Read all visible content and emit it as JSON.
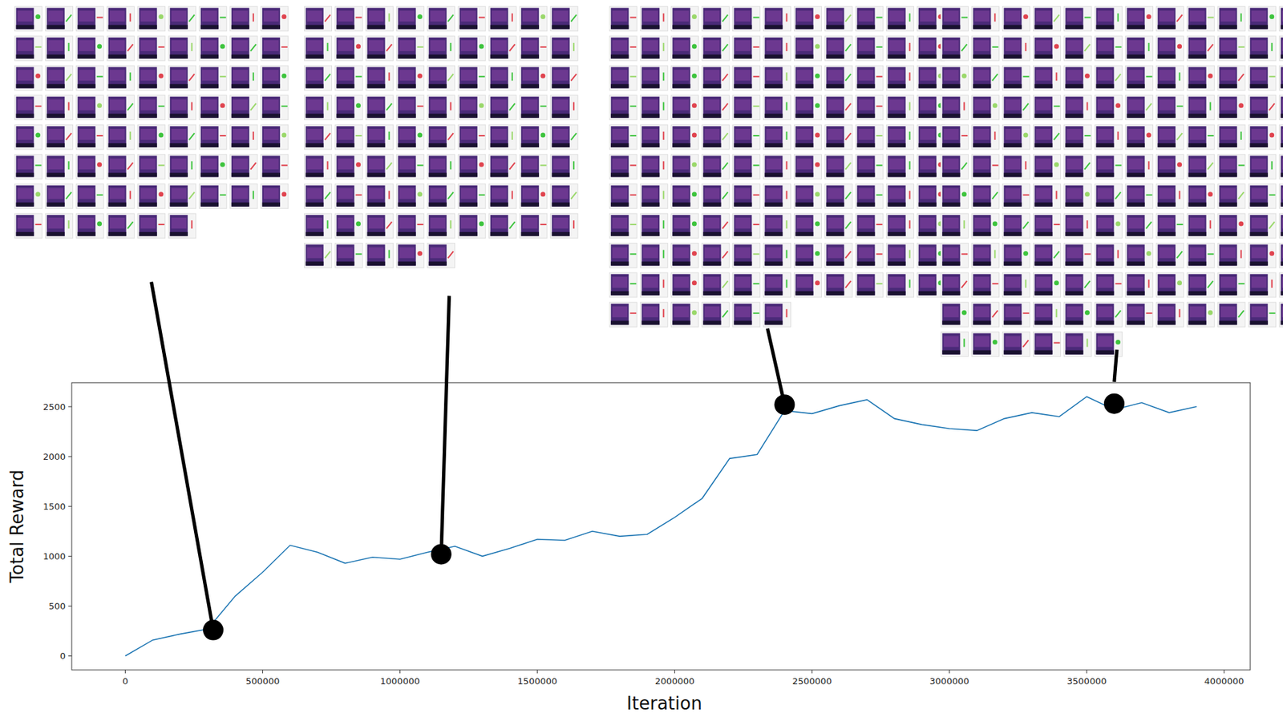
{
  "chart_data": {
    "type": "line",
    "x_label": "Iteration",
    "y_label": "Total Reward",
    "x": [
      0,
      100000,
      200000,
      300000,
      400000,
      500000,
      600000,
      700000,
      800000,
      900000,
      1000000,
      1100000,
      1200000,
      1300000,
      1400000,
      1500000,
      1600000,
      1700000,
      1800000,
      1900000,
      2000000,
      2100000,
      2200000,
      2300000,
      2400000,
      2500000,
      2600000,
      2700000,
      2800000,
      2900000,
      3000000,
      3100000,
      3200000,
      3300000,
      3400000,
      3500000,
      3600000,
      3700000,
      3800000,
      3900000
    ],
    "values": [
      0,
      160,
      220,
      270,
      600,
      840,
      1110,
      1040,
      930,
      990,
      970,
      1040,
      1100,
      1000,
      1080,
      1170,
      1160,
      1250,
      1200,
      1220,
      1390,
      1580,
      1980,
      2020,
      2460,
      2430,
      2510,
      2570,
      2380,
      2320,
      2280,
      2260,
      2380,
      2440,
      2400,
      2600,
      2470,
      2540,
      2440,
      2500
    ],
    "color": "#1f77b4",
    "highlight_points": [
      {
        "x": 320000,
        "y": 260
      },
      {
        "x": 1150000,
        "y": 1020
      },
      {
        "x": 2400000,
        "y": 2520
      },
      {
        "x": 3600000,
        "y": 2530
      }
    ],
    "xlim": [
      -195000,
      4095000
    ],
    "ylim": [
      -140,
      2740
    ],
    "xticks": [
      0,
      500000,
      1000000,
      1500000,
      2000000,
      2500000,
      3000000,
      3500000,
      4000000
    ],
    "yticks": [
      0,
      500,
      1000,
      1500,
      2000,
      2500
    ],
    "grid": false
  }
}
